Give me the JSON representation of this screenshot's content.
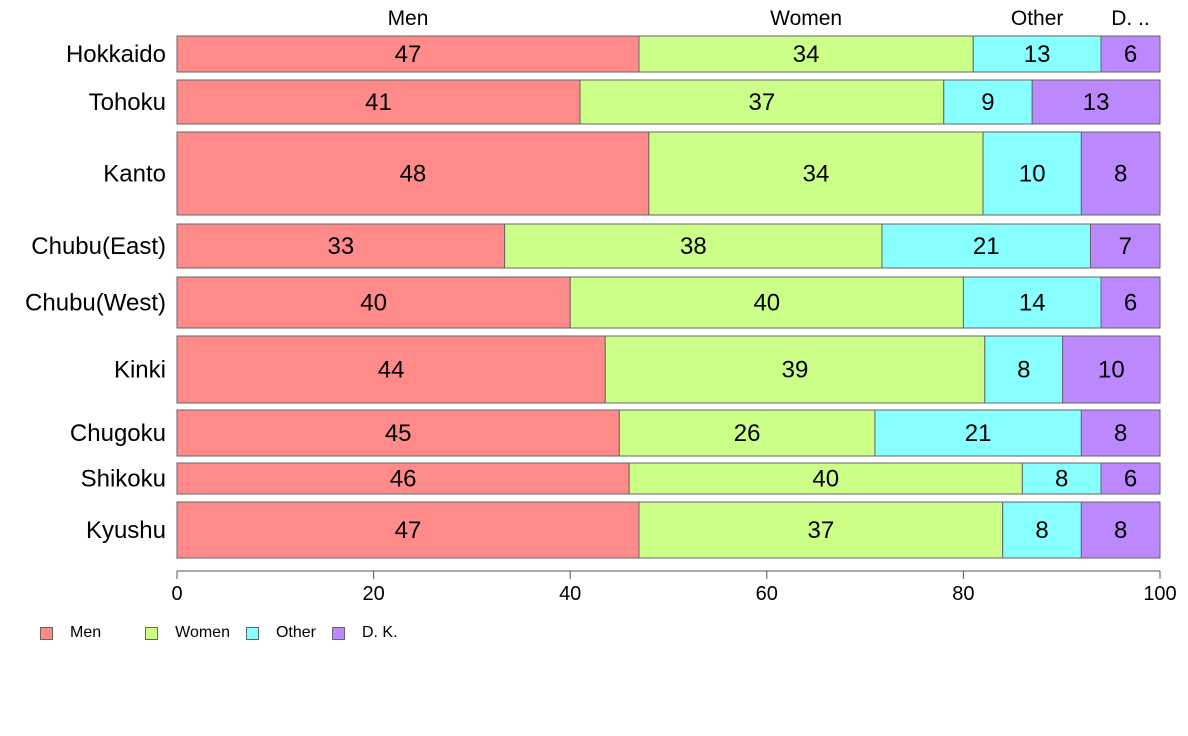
{
  "chart_data": {
    "type": "bar",
    "orientation": "horizontal",
    "stacked": true,
    "categories": [
      "Hokkaido",
      "Tohoku",
      "Kanto",
      "Chubu(East)",
      "Chubu(West)",
      "Kinki",
      "Chugoku",
      "Shikoku",
      "Kyushu"
    ],
    "series": [
      {
        "name": "Men",
        "values": [
          47,
          41,
          48,
          33,
          40,
          44,
          45,
          46,
          47
        ],
        "labels": [
          "47",
          "41",
          "48",
          "33",
          "40",
          "44",
          "45",
          "46",
          "47"
        ],
        "color": "#ff8a8a"
      },
      {
        "name": "Women",
        "values": [
          34,
          37,
          34,
          38,
          40,
          39,
          26,
          40,
          37
        ],
        "labels": [
          "34",
          "37",
          "34",
          "38",
          "40",
          "39",
          "26",
          "40",
          "37"
        ],
        "color": "#ccff88"
      },
      {
        "name": "Other",
        "values": [
          13,
          9,
          10,
          21,
          14,
          8,
          21,
          8,
          8
        ],
        "labels": [
          "13",
          "9",
          "10",
          "21",
          "14",
          "8",
          "21",
          "8",
          "8"
        ],
        "color": "#88ffff"
      },
      {
        "name": "D. K.",
        "values": [
          6,
          13,
          8,
          7,
          6,
          10,
          8,
          6,
          8
        ],
        "labels": [
          "6",
          "13",
          "8",
          "7",
          "6",
          "10",
          "8",
          "6",
          "8"
        ],
        "color": "#bb88ff"
      }
    ],
    "top_labels": [
      "Men",
      "Women",
      "Other",
      "D. .."
    ],
    "xlim": [
      0,
      100
    ],
    "xticks": [
      "0",
      "20",
      "40",
      "60",
      "80",
      "100"
    ],
    "grid": false,
    "legend_position": "bottom-left",
    "bar_border_color": "#666666"
  },
  "legend": {
    "items": [
      {
        "label": "Men",
        "color": "#ff8a8a"
      },
      {
        "label": "Women",
        "color": "#ccff88"
      },
      {
        "label": "Other",
        "color": "#88ffff"
      },
      {
        "label": "D. K.",
        "color": "#bb88ff"
      }
    ]
  }
}
